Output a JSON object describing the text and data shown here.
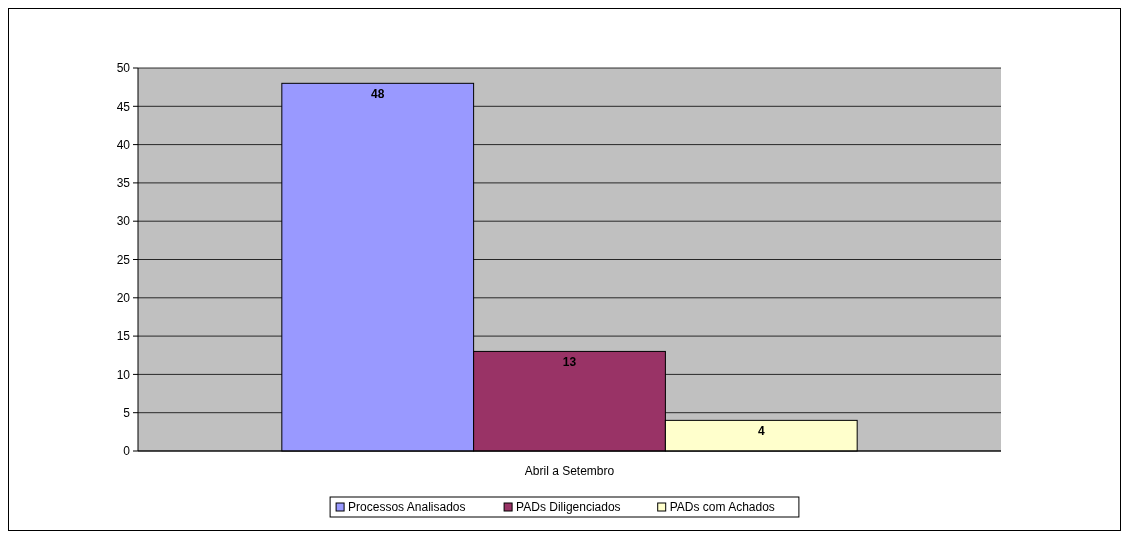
{
  "chart_data": {
    "type": "bar",
    "categories": [
      "Abril a Setembro"
    ],
    "series": [
      {
        "name": "Processos Analisados",
        "color": "#9999ff",
        "values": [
          48
        ]
      },
      {
        "name": "PADs Diligenciados",
        "color": "#993366",
        "values": [
          13
        ]
      },
      {
        "name": "PADs com Achados",
        "color": "#ffffcc",
        "values": [
          4
        ]
      }
    ],
    "ylim": [
      0,
      50
    ],
    "yticks": [
      0,
      5,
      10,
      15,
      20,
      25,
      30,
      35,
      40,
      45,
      50
    ],
    "grid": "y",
    "legend": "bottom",
    "data_labels": true
  }
}
